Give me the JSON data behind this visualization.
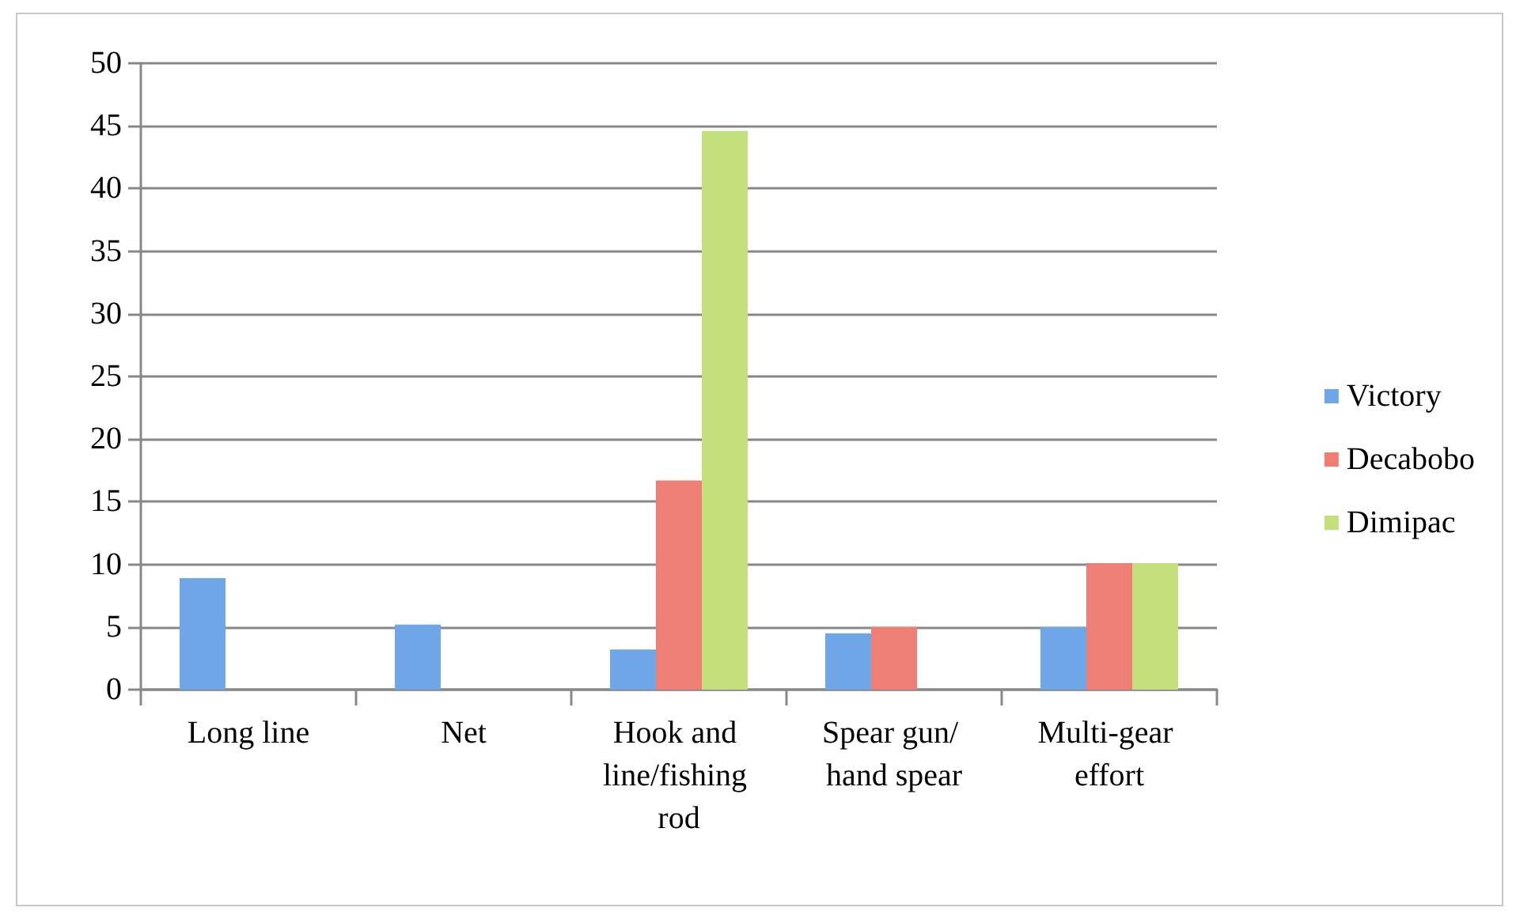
{
  "chart_data": {
    "type": "bar",
    "categories": [
      "Long line",
      "Net",
      "Hook and line/fishing rod",
      "Spear gun/ hand spear",
      "Multi-gear effort"
    ],
    "series": [
      {
        "name": "Victory",
        "color": "#6fa6e8",
        "values": [
          8.9,
          5.2,
          3.2,
          4.5,
          5.0
        ]
      },
      {
        "name": "Decabobo",
        "color": "#ef7f76",
        "values": [
          null,
          null,
          16.7,
          5.0,
          10.1
        ]
      },
      {
        "name": "Dimipac",
        "color": "#c3e07c",
        "values": [
          null,
          null,
          44.6,
          null,
          10.1
        ]
      }
    ],
    "ylim": [
      0,
      50
    ],
    "yticks": [
      0,
      5,
      10,
      15,
      20,
      25,
      30,
      35,
      40,
      45,
      50
    ],
    "grid": "y",
    "legend": "right"
  }
}
